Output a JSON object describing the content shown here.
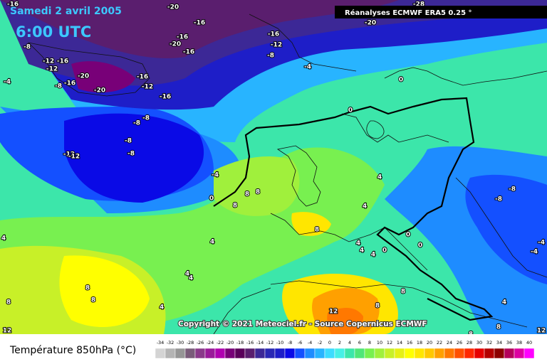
{
  "header": {
    "date": "Samedi 2 avril 2005",
    "time": "6:00 UTC",
    "source": "Réanalyses ECMWF ERA5 0.25 °"
  },
  "copyright": "Copyright © 2021 Meteociel.fr - Source Copernicus ECMWF",
  "contour_labels": [
    -16,
    -20,
    -16,
    -28,
    -20,
    -16,
    -20,
    -16,
    -16,
    -12,
    -8,
    -8,
    -12,
    -16,
    -12,
    -20,
    -16,
    -8,
    -16,
    -12,
    -20,
    -16,
    -4,
    -4,
    0,
    0,
    -8,
    -8,
    -8,
    -8,
    -12,
    -12,
    -4,
    0,
    8,
    8,
    8,
    4,
    4,
    -8,
    -8,
    4,
    4,
    8,
    4,
    4,
    0,
    4,
    0,
    0,
    4,
    4,
    8,
    8,
    4,
    8,
    12,
    12,
    8,
    8,
    8,
    8,
    4,
    12,
    -4,
    -4
  ],
  "legend": {
    "title": "Température 850hPa (°C)",
    "scale": [
      {
        "value": -34,
        "color": "#d4d4d4"
      },
      {
        "value": -32,
        "color": "#b4b4b4"
      },
      {
        "value": -30,
        "color": "#969696"
      },
      {
        "value": -28,
        "color": "#7a5c7a"
      },
      {
        "value": -26,
        "color": "#8a3a8a"
      },
      {
        "value": -24,
        "color": "#9a1a9a"
      },
      {
        "value": -22,
        "color": "#b000b0"
      },
      {
        "value": -20,
        "color": "#780078"
      },
      {
        "value": -18,
        "color": "#5a005a"
      },
      {
        "value": -16,
        "color": "#5a1e6e"
      },
      {
        "value": -14,
        "color": "#3c2896"
      },
      {
        "value": -12,
        "color": "#2a28b4"
      },
      {
        "value": -10,
        "color": "#1e1ec8"
      },
      {
        "value": -8,
        "color": "#0a0ae6"
      },
      {
        "value": -6,
        "color": "#1450ff"
      },
      {
        "value": -4,
        "color": "#1e8cff"
      },
      {
        "value": -2,
        "color": "#28b4ff"
      },
      {
        "value": 0,
        "color": "#3cdcff"
      },
      {
        "value": 2,
        "color": "#46f0e6"
      },
      {
        "value": 4,
        "color": "#3ce6aa"
      },
      {
        "value": 6,
        "color": "#50e678"
      },
      {
        "value": 8,
        "color": "#78f050"
      },
      {
        "value": 10,
        "color": "#a0f03c"
      },
      {
        "value": 12,
        "color": "#c8f028"
      },
      {
        "value": 14,
        "color": "#e6f014"
      },
      {
        "value": 16,
        "color": "#ffff00"
      },
      {
        "value": 18,
        "color": "#ffe600"
      },
      {
        "value": 20,
        "color": "#ffc800"
      },
      {
        "value": 22,
        "color": "#ffa000"
      },
      {
        "value": 24,
        "color": "#ff7800"
      },
      {
        "value": 26,
        "color": "#ff5000"
      },
      {
        "value": 28,
        "color": "#ff2800"
      },
      {
        "value": 30,
        "color": "#e60000"
      },
      {
        "value": 32,
        "color": "#b40000"
      },
      {
        "value": 34,
        "color": "#8c0000"
      },
      {
        "value": 36,
        "color": "#b4005a"
      },
      {
        "value": 38,
        "color": "#dc00a0"
      },
      {
        "value": 40,
        "color": "#ff00ff"
      }
    ]
  }
}
